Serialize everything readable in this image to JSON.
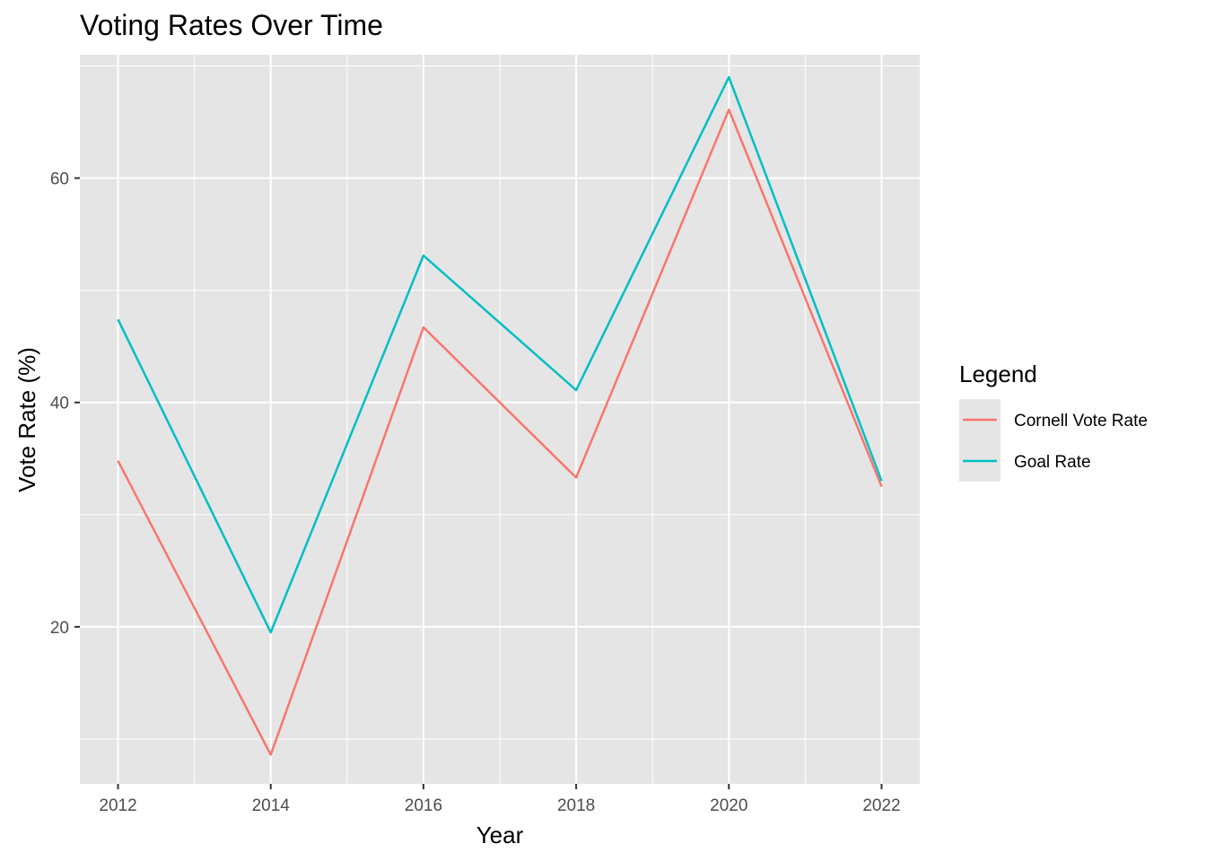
{
  "chart_data": {
    "type": "line",
    "title": "Voting Rates Over Time",
    "xlabel": "Year",
    "ylabel": "Vote Rate (%)",
    "x": [
      2012,
      2014,
      2016,
      2018,
      2020,
      2022
    ],
    "x_ticks": [
      "2012",
      "2014",
      "2016",
      "2018",
      "2020",
      "2022"
    ],
    "y_ticks": [
      "20",
      "40",
      "60"
    ],
    "xlim": [
      2011.5,
      2022.5
    ],
    "ylim": [
      6.0,
      71.0
    ],
    "grid": true,
    "legend": {
      "title": "Legend",
      "placement": "right"
    },
    "series": [
      {
        "name": "Cornell Vote Rate",
        "color": "#F8766D",
        "values": [
          34.8,
          8.6,
          46.7,
          33.3,
          66.1,
          32.5
        ]
      },
      {
        "name": "Goal Rate",
        "color": "#00BFC4",
        "values": [
          47.4,
          19.5,
          53.1,
          41.1,
          69.0,
          33.0
        ]
      }
    ]
  }
}
